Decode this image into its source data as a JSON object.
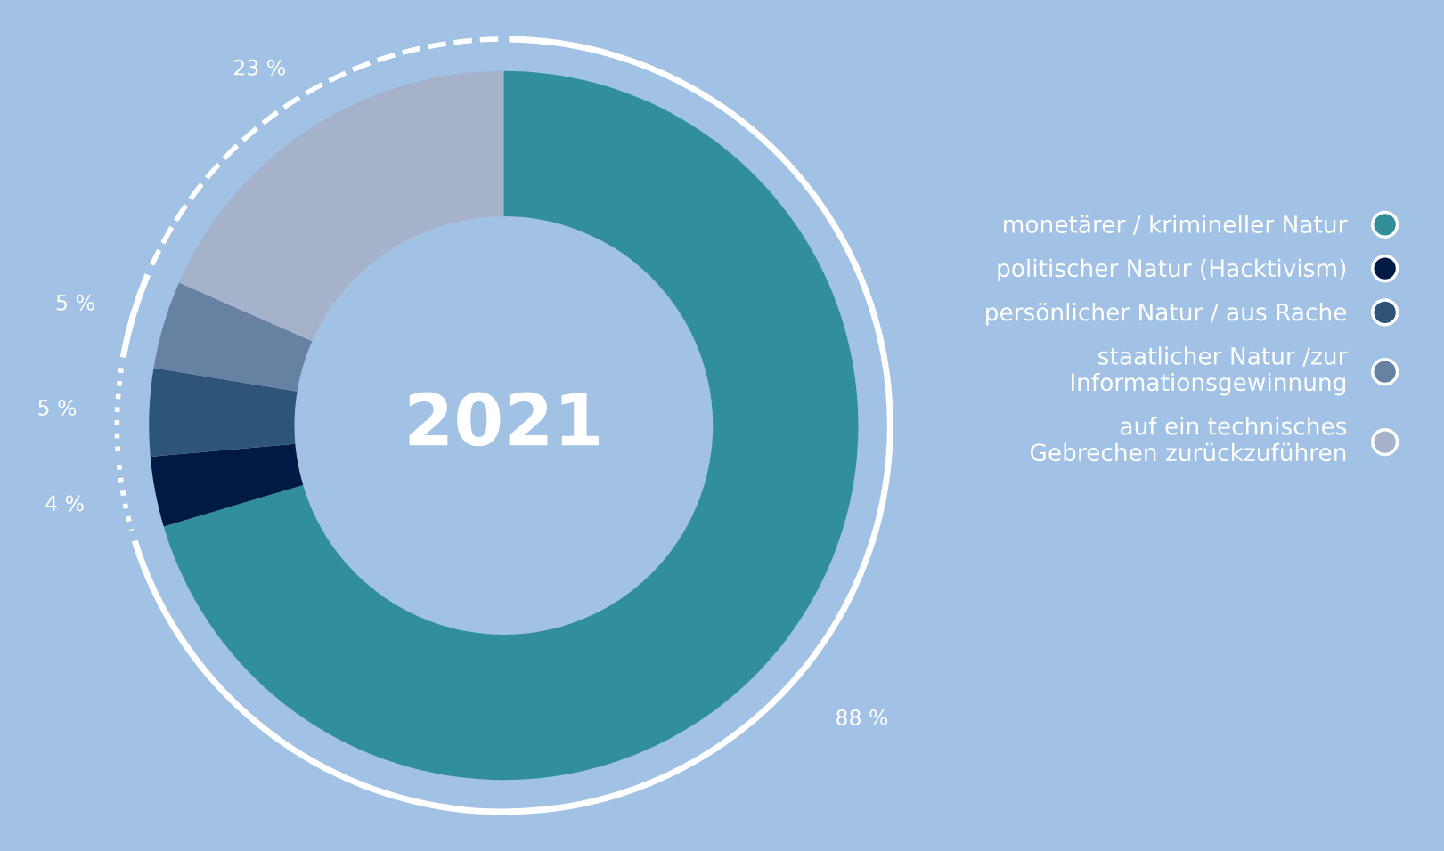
{
  "chart_data": {
    "type": "donut",
    "title": "2021",
    "categories": [
      "monetärer / krimineller Natur",
      "politischer Natur (Hacktivism)",
      "persönlicher Natur / aus Rache",
      "staatlicher Natur /zur\nInformationsgewinnung",
      "auf ein technisches\nGebrechen zurückzuführen"
    ],
    "values": [
      88,
      4,
      5,
      5,
      23
    ],
    "value_labels": [
      "88 %",
      "4 %",
      "5 %",
      "5 %",
      "23 %"
    ],
    "colors": [
      "#318f9c",
      "#011a44",
      "#2e5478",
      "#6781a3",
      "#a6b2c9"
    ],
    "legend": "right"
  }
}
